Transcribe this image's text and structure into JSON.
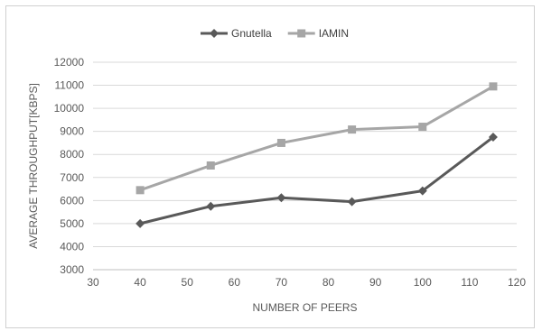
{
  "chart_data": {
    "type": "line",
    "title": "",
    "xlabel": "NUMBER OF PEERS",
    "ylabel": "AVERAGE THROUGHPUT[KBPS]",
    "xlim": [
      30,
      120
    ],
    "ylim": [
      3000,
      12000
    ],
    "xticks": [
      30,
      40,
      50,
      60,
      70,
      80,
      90,
      100,
      110,
      120
    ],
    "yticks": [
      3000,
      4000,
      5000,
      6000,
      7000,
      8000,
      9000,
      10000,
      11000,
      12000
    ],
    "grid": "horizontal",
    "legend_position": "top-center",
    "x": [
      40,
      55,
      70,
      85,
      100,
      115
    ],
    "series": [
      {
        "name": "Gnutella",
        "marker": "diamond",
        "color": "#595959",
        "values": [
          5000,
          5750,
          6120,
          5950,
          6420,
          8750
        ]
      },
      {
        "name": "IAMIN",
        "marker": "square",
        "color": "#a6a6a6",
        "values": [
          6450,
          7520,
          8500,
          9080,
          9200,
          10950
        ]
      }
    ]
  }
}
